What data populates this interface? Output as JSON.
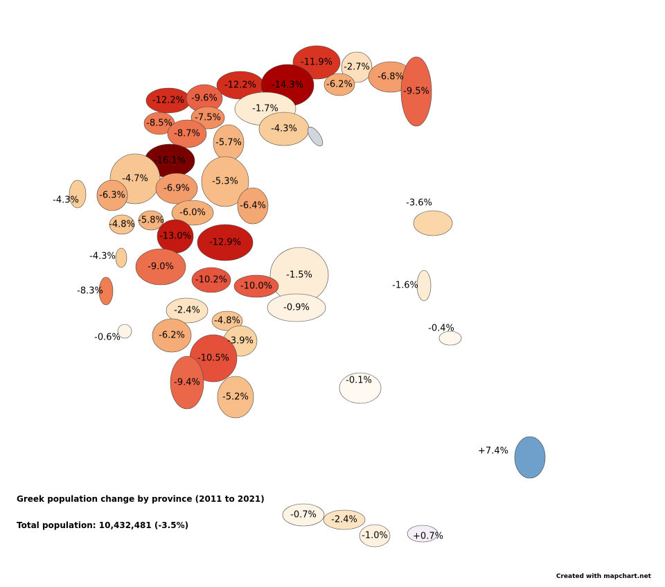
{
  "title": "Greek population change by province (2011 to 2021)",
  "total": "Total population: 10,432,481 (-3.5%)",
  "credit": "Created with mapchart.net",
  "colors": {
    "strong_decline": "#7a0000",
    "decline": "#e8604a",
    "mild_decline": "#f9cf9e",
    "stable": "#fff8f0",
    "growth": "#6fa0cc",
    "no_data": "#d0d6dc"
  },
  "regions": [
    {
      "label": "-11.9%",
      "value": -11.9
    },
    {
      "label": "-2.7%",
      "value": -2.7
    },
    {
      "label": "-6.8%",
      "value": -6.8
    },
    {
      "label": "-9.5%",
      "value": -9.5
    },
    {
      "label": "-12.2%",
      "value": -12.2
    },
    {
      "label": "-14.3%",
      "value": -14.3
    },
    {
      "label": "-6.2%",
      "value": -6.2
    },
    {
      "label": "-12.2%",
      "value": -12.2
    },
    {
      "label": "-9.6%",
      "value": -9.6
    },
    {
      "label": "-1.7%",
      "value": -1.7
    },
    {
      "label": "-7.5%",
      "value": -7.5
    },
    {
      "label": "-8.5%",
      "value": -8.5
    },
    {
      "label": "-8.7%",
      "value": -8.7
    },
    {
      "label": "-4.3%",
      "value": -4.3
    },
    {
      "label": "-5.7%",
      "value": -5.7
    },
    {
      "label": "-16.1%",
      "value": -16.1
    },
    {
      "label": "-4.7%",
      "value": -4.7
    },
    {
      "label": "-5.3%",
      "value": -5.3
    },
    {
      "label": "-6.9%",
      "value": -6.9
    },
    {
      "label": "-4.3%",
      "value": -4.3
    },
    {
      "label": "-6.3%",
      "value": -6.3
    },
    {
      "label": "-3.6%",
      "value": -3.6
    },
    {
      "label": "-6.4%",
      "value": -6.4
    },
    {
      "label": "-6.0%",
      "value": -6.0
    },
    {
      "label": "-4.8%",
      "value": -4.8
    },
    {
      "label": "-5.8%",
      "value": -5.8
    },
    {
      "label": "-13.0%",
      "value": -13.0
    },
    {
      "label": "-12.9%",
      "value": -12.9
    },
    {
      "label": "-4.3%",
      "value": -4.3
    },
    {
      "label": "-9.0%",
      "value": -9.0
    },
    {
      "label": "-1.5%",
      "value": -1.5
    },
    {
      "label": "-10.2%",
      "value": -10.2
    },
    {
      "label": "-10.0%",
      "value": -10.0
    },
    {
      "label": "-1.6%",
      "value": -1.6
    },
    {
      "label": "-8.3%",
      "value": -8.3
    },
    {
      "label": "-0.9%",
      "value": -0.9
    },
    {
      "label": "-2.4%",
      "value": -2.4
    },
    {
      "label": "-4.8%",
      "value": -4.8
    },
    {
      "label": "-0.4%",
      "value": -0.4
    },
    {
      "label": "-0.6%",
      "value": -0.6
    },
    {
      "label": "-6.2%",
      "value": -6.2
    },
    {
      "label": "-3.9%",
      "value": -3.9
    },
    {
      "label": "-10.5%",
      "value": -10.5
    },
    {
      "label": "-0.1%",
      "value": -0.1
    },
    {
      "label": "-9.4%",
      "value": -9.4
    },
    {
      "label": "-5.2%",
      "value": -5.2
    },
    {
      "label": "+7.4%",
      "value": 7.4
    },
    {
      "label": "-0.7%",
      "value": -0.7
    },
    {
      "label": "-2.4%",
      "value": -2.4
    },
    {
      "label": "-1.0%",
      "value": -1.0
    },
    {
      "label": "+0.7%",
      "value": 0.7
    }
  ]
}
